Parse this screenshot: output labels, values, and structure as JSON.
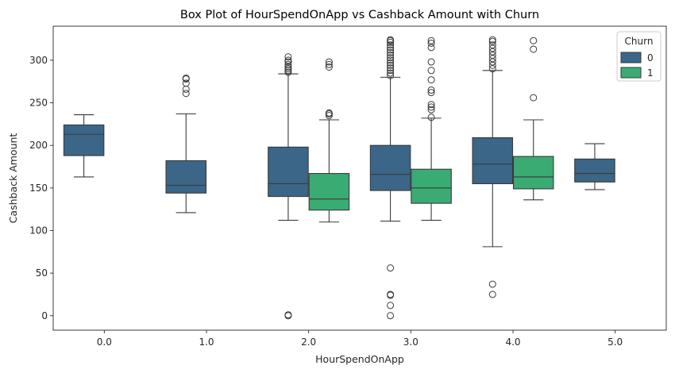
{
  "chart_data": {
    "type": "box",
    "title": "Box Plot of HourSpendOnApp vs Cashback Amount with Churn",
    "xlabel": "HourSpendOnApp",
    "ylabel": "Cashback Amount",
    "categories": [
      "0.0",
      "1.0",
      "2.0",
      "3.0",
      "4.0",
      "5.0"
    ],
    "ylim": [
      -17,
      340
    ],
    "yticks": [
      0,
      50,
      100,
      150,
      200,
      250,
      300
    ],
    "legend": {
      "title": "Churn",
      "placement": "top-right",
      "entries": [
        {
          "label": "0",
          "color": "#3b6687"
        },
        {
          "label": "1",
          "color": "#3aab73"
        }
      ]
    },
    "series": [
      {
        "name": "0",
        "color": "#3b6687",
        "boxes": [
          {
            "category": "0.0",
            "whisker_low": 163,
            "q1": 188,
            "median": 213,
            "q3": 224,
            "whisker_high": 236,
            "outliers": []
          },
          {
            "category": "1.0",
            "whisker_low": 121,
            "q1": 144,
            "median": 153,
            "q3": 182,
            "whisker_high": 237,
            "outliers": [
              261,
              266,
              273,
              278,
              279
            ]
          },
          {
            "category": "2.0",
            "whisker_low": 112,
            "q1": 140,
            "median": 155,
            "q3": 198,
            "whisker_high": 284,
            "outliers": [
              0,
              1,
              286,
              288,
              290,
              292,
              295,
              298,
              300,
              304
            ]
          },
          {
            "category": "3.0",
            "whisker_low": 111,
            "q1": 147,
            "median": 166,
            "q3": 200,
            "whisker_high": 280,
            "outliers": [
              0,
              12,
              24,
              25,
              56,
              282,
              285,
              288,
              291,
              294,
              297,
              300,
              303,
              306,
              309,
              312,
              315,
              318,
              321,
              323,
              324
            ]
          },
          {
            "category": "4.0",
            "whisker_low": 81,
            "q1": 155,
            "median": 178,
            "q3": 209,
            "whisker_high": 288,
            "outliers": [
              25,
              37,
              290,
              294,
              298,
              302,
              306,
              310,
              314,
              318,
              322,
              324
            ]
          },
          {
            "category": "5.0",
            "whisker_low": 148,
            "q1": 157,
            "median": 167,
            "q3": 184,
            "whisker_high": 202,
            "outliers": []
          }
        ]
      },
      {
        "name": "1",
        "color": "#3aab73",
        "boxes": [
          {
            "category": "2.0",
            "whisker_low": 110,
            "q1": 124,
            "median": 137,
            "q3": 167,
            "whisker_high": 230,
            "outliers": [
              235,
              237,
              238,
              292,
              295,
              298
            ]
          },
          {
            "category": "3.0",
            "whisker_low": 112,
            "q1": 132,
            "median": 150,
            "q3": 172,
            "whisker_high": 232,
            "outliers": [
              233,
              242,
              245,
              248,
              262,
              265,
              277,
              288,
              298,
              315,
              320,
              323
            ]
          },
          {
            "category": "4.0",
            "whisker_low": 136,
            "q1": 149,
            "median": 163,
            "q3": 187,
            "whisker_high": 230,
            "outliers": [
              256,
              313,
              323
            ]
          }
        ]
      }
    ]
  }
}
